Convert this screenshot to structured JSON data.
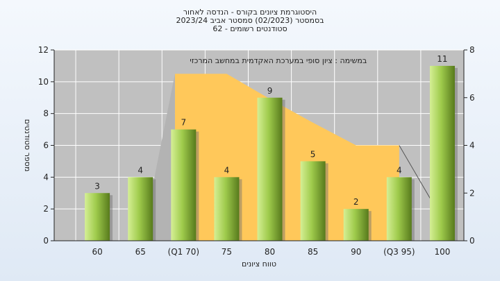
{
  "chart_data": {
    "type": "bar",
    "title_lines": [
      "היסטוגרמת ציונים בקורס - הנדסה לאחור",
      "בסמסטר  (02/2023)  סמסטר אביב 2023/24",
      "סטודנטים רשומים - 62"
    ],
    "annotation": "במשימה : ציון סופי במערכת האקדמית במחשב המרכזי",
    "xlabel": "טווח ציונים",
    "ylabel": "מספר סטודנטים",
    "categories": [
      "60",
      "65",
      "(Q1 70)",
      "75",
      "80",
      "85",
      "90",
      "(Q3 95)",
      "100"
    ],
    "values": [
      3,
      4,
      7,
      4,
      9,
      5,
      2,
      4,
      11
    ],
    "ylim": [
      0,
      12
    ],
    "yticks": [
      "0",
      "2",
      "4",
      "6",
      "8",
      "10",
      "12"
    ],
    "y2lim": [
      0,
      8
    ],
    "y2ticks": [
      "0",
      "2",
      "4",
      "6",
      "8"
    ],
    "box_plot": {
      "q1_category": "(Q1 70)",
      "q3_category": "(Q3 95)",
      "upper_profile": [
        7.0,
        7.0,
        6.0,
        5.0,
        4.0,
        4.0
      ]
    },
    "grid": true,
    "colors": {
      "plot_bg": "#c0c0c0",
      "grid": "#ffffff",
      "box_fill": "#ffc85a",
      "bar_light": "#d5ef95",
      "bar_mid": "#9fcb4c",
      "bar_dark": "#577a1c"
    }
  }
}
